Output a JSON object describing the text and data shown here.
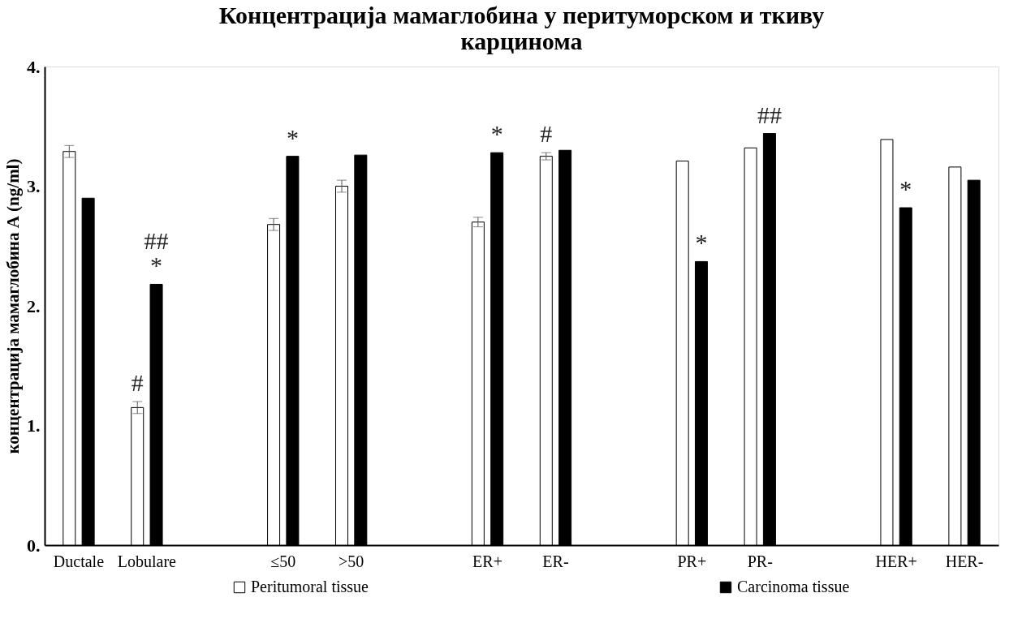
{
  "chart_data": {
    "type": "bar",
    "title": "Концентрација мамаглобина у перитуморском и ткиву карцинома",
    "ylabel": "концентрација мамаглобина А (ng/ml)",
    "categories": [
      "Ductale",
      "Lobulare",
      null,
      "≤50",
      ">50",
      null,
      "ER+",
      "ER-",
      null,
      "PR+",
      "PR-",
      null,
      "HER+",
      "HER-"
    ],
    "series": [
      {
        "name": "Peritumoral tissue",
        "color": "#ffffff",
        "values": [
          3.29,
          1.15,
          null,
          2.68,
          3.0,
          null,
          2.7,
          3.25,
          null,
          3.21,
          3.32,
          null,
          3.39,
          3.16
        ],
        "errors": [
          0.05,
          0.05,
          null,
          0.05,
          0.05,
          null,
          0.04,
          0.03,
          null,
          null,
          null,
          null,
          null,
          null
        ]
      },
      {
        "name": "Carcinoma tissue",
        "color": "#000000",
        "values": [
          2.9,
          2.18,
          null,
          3.25,
          3.26,
          null,
          3.28,
          3.3,
          null,
          2.37,
          3.44,
          null,
          2.82,
          3.05
        ]
      }
    ],
    "ylim": [
      0,
      4
    ],
    "yticks": [
      {
        "value": 0,
        "label": "0."
      },
      {
        "value": 1,
        "label": "1."
      },
      {
        "value": 2,
        "label": "2."
      },
      {
        "value": 3,
        "label": "3."
      },
      {
        "value": 4,
        "label": "4."
      }
    ],
    "annotations": [
      {
        "text": "#",
        "x": "Lobulare",
        "y": 1.15
      },
      {
        "text": "*",
        "x": "Lobulare",
        "y": 2.18
      },
      {
        "text": "##",
        "x": "Lobulare",
        "y": 2.18
      },
      {
        "text": "*",
        "x": "≤50",
        "y": 3.25
      },
      {
        "text": "*",
        "x": "ER+",
        "y": 3.28
      },
      {
        "text": "#",
        "x": "ER-",
        "y": 3.25
      },
      {
        "text": "*",
        "x": "PR+",
        "y": 2.37
      },
      {
        "text": "##",
        "x": "PR-",
        "y": 3.44
      },
      {
        "text": "*",
        "x": "HER+",
        "y": 2.82
      }
    ],
    "grid": false,
    "legend": "bottom"
  }
}
